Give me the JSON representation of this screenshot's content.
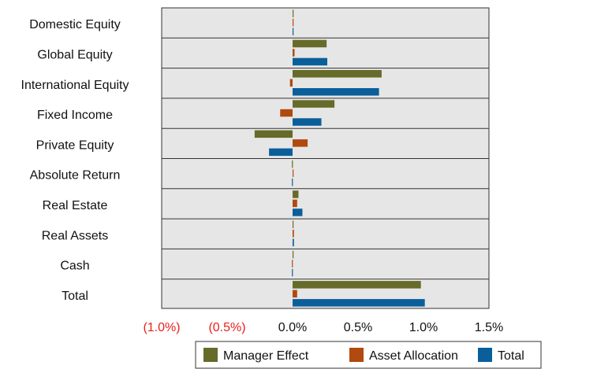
{
  "chart_data": {
    "type": "bar",
    "orientation": "horizontal",
    "categories": [
      "Domestic Equity",
      "Global Equity",
      "International Equity",
      "Fixed Income",
      "Private Equity",
      "Absolute Return",
      "Real Estate",
      "Real Assets",
      "Cash",
      "Total"
    ],
    "series": [
      {
        "name": "Manager Effect",
        "color": "#666B29",
        "values": [
          0.0,
          0.26,
          0.68,
          0.32,
          -0.29,
          -0.005,
          0.045,
          0.0,
          0.0,
          0.98
        ]
      },
      {
        "name": "Asset Allocation",
        "color": "#B04A0E",
        "values": [
          0.0,
          0.015,
          -0.02,
          -0.095,
          0.115,
          0.0,
          0.035,
          0.01,
          -0.005,
          0.035
        ]
      },
      {
        "name": "Total",
        "color": "#0A5F9A",
        "values": [
          0.0,
          0.265,
          0.66,
          0.22,
          -0.18,
          -0.005,
          0.075,
          0.01,
          -0.005,
          1.01
        ]
      }
    ],
    "x_tick_labels": [
      "(1.0%)",
      "(0.5%)",
      "0.0%",
      "0.5%",
      "1.0%",
      "1.5%"
    ],
    "x_tick_values": [
      -1.0,
      -0.5,
      0.0,
      0.5,
      1.0,
      1.5
    ],
    "negative_tick_color": "#E8201A",
    "xlim": [
      -1.0,
      1.5
    ],
    "unit": "%",
    "plot_background": "#E6E6E6",
    "grid": true,
    "legend": "bottom",
    "title": "",
    "xlabel": "",
    "ylabel": ""
  }
}
